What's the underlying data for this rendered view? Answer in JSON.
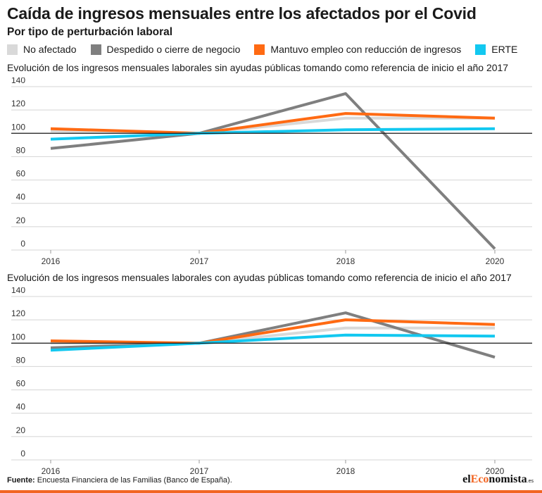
{
  "header": {
    "title": "Caída de ingresos mensuales entre los afectados por el Covid",
    "subtitle": "Por tipo de perturbación laboral"
  },
  "legend": [
    {
      "label": "No afectado",
      "color": "#d9d9d9"
    },
    {
      "label": "Despedido o cierre de negocio",
      "color": "#7f7f7f"
    },
    {
      "label": "Mantuvo empleo con reducción de ingresos",
      "color": "#ff6a13"
    },
    {
      "label": "ERTE",
      "color": "#12c8f0"
    }
  ],
  "chart_data": [
    {
      "type": "line",
      "title": "Evolución de los ingresos mensuales laborales sin ayudas públicas tomando como referencia de inicio el año 2017",
      "x": [
        "2016",
        "2017",
        "2018",
        "2020"
      ],
      "ylim": [
        0,
        140
      ],
      "yticks": [
        0,
        20,
        40,
        60,
        80,
        100,
        120,
        140
      ],
      "reference_line": 100,
      "grid": true,
      "series": [
        {
          "name": "No afectado",
          "color": "#d9d9d9",
          "values": [
            102,
            100,
            113,
            113
          ]
        },
        {
          "name": "Despedido o cierre de negocio",
          "color": "#7f7f7f",
          "values": [
            87,
            100,
            134,
            1
          ]
        },
        {
          "name": "Mantuvo empleo con reducción de ingresos",
          "color": "#ff6a13",
          "values": [
            104,
            100,
            117,
            113
          ]
        },
        {
          "name": "ERTE",
          "color": "#12c8f0",
          "values": [
            95,
            100,
            103,
            104
          ]
        }
      ]
    },
    {
      "type": "line",
      "title": "Evolución de los ingresos mensuales laborales con ayudas públicas tomando como referencia de inicio el año 2017",
      "x": [
        "2016",
        "2017",
        "2018",
        "2020"
      ],
      "ylim": [
        0,
        140
      ],
      "yticks": [
        0,
        20,
        40,
        60,
        80,
        100,
        120,
        140
      ],
      "reference_line": 100,
      "grid": true,
      "series": [
        {
          "name": "No afectado",
          "color": "#d9d9d9",
          "values": [
            100,
            100,
            113,
            113
          ]
        },
        {
          "name": "Despedido o cierre de negocio",
          "color": "#7f7f7f",
          "values": [
            96,
            100,
            126,
            88
          ]
        },
        {
          "name": "Mantuvo empleo con reducción de ingresos",
          "color": "#ff6a13",
          "values": [
            102,
            100,
            120,
            116
          ]
        },
        {
          "name": "ERTE",
          "color": "#12c8f0",
          "values": [
            94,
            100,
            107,
            106
          ]
        }
      ]
    }
  ],
  "footer": {
    "source_label": "Fuente:",
    "source_text": " Encuesta Financiera de las Familias (Banco de España).",
    "brand_prefix": "el",
    "brand_highlight": "Eco",
    "brand_suffix": "nomista",
    "brand_tld": ".es"
  }
}
